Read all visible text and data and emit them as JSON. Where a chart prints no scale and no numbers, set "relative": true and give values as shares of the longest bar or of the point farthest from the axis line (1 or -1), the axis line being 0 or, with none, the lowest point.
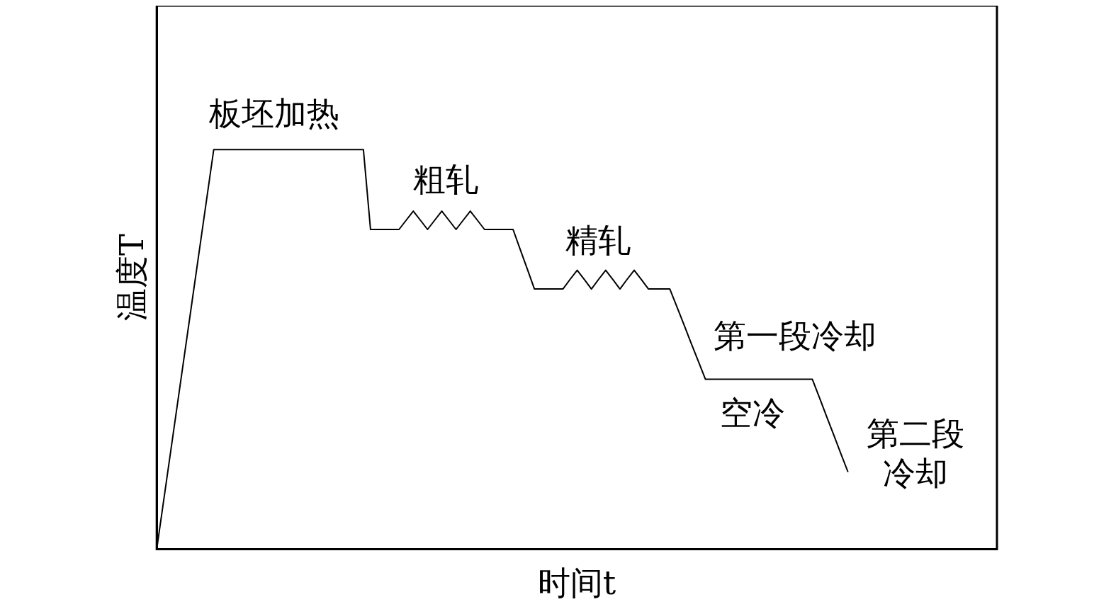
{
  "chart_data": {
    "type": "line",
    "relative": true,
    "xlabel": "时间t",
    "ylabel": "温度T",
    "marker": "none",
    "line_style": "solid",
    "categories": [
      null,
      null,
      null,
      null,
      null,
      null,
      null,
      null,
      null,
      null,
      null,
      null,
      null,
      null,
      null,
      null,
      null,
      null,
      null,
      null,
      null,
      null,
      null,
      null,
      null,
      null,
      null,
      null,
      null,
      null,
      null,
      null,
      null,
      null,
      null,
      null,
      null,
      null,
      null,
      null,
      null,
      null,
      null,
      null,
      null,
      null,
      null,
      null,
      null,
      null,
      null,
      null,
      null,
      null,
      null,
      null,
      null,
      null,
      null,
      null,
      null,
      null,
      null,
      null,
      null,
      null,
      null,
      null,
      null,
      null,
      null,
      null,
      null,
      null,
      null,
      null,
      null,
      null,
      null,
      null,
      null,
      null,
      null,
      null,
      null,
      null,
      null,
      null,
      null,
      null,
      null,
      null,
      null,
      null,
      null,
      null,
      null,
      null
    ],
    "series": [
      {
        "color": "#000000",
        "values": [
          0,
          0.125,
          0.25,
          0.375,
          0.5,
          0.625,
          0.75,
          0.875,
          1,
          1,
          1,
          1,
          1,
          1,
          1,
          1,
          1,
          1,
          1,
          1,
          1,
          1,
          1,
          1,
          1,
          1,
          1,
          1,
          1,
          1,
          0.8,
          0.8,
          0.8,
          0.8,
          0.8,
          0.823,
          0.846,
          0.823,
          0.8,
          0.823,
          0.846,
          0.823,
          0.8,
          0.823,
          0.846,
          0.823,
          0.8,
          0.8,
          0.8,
          0.8,
          0.8,
          0.75,
          0.701,
          0.651,
          0.651,
          0.651,
          0.651,
          0.651,
          0.675,
          0.698,
          0.675,
          0.651,
          0.675,
          0.698,
          0.675,
          0.651,
          0.675,
          0.698,
          0.675,
          0.651,
          0.651,
          0.651,
          0.651,
          0.606,
          0.561,
          0.515,
          0.47,
          0.425,
          0.425,
          0.425,
          0.425,
          0.425,
          0.425,
          0.425,
          0.425,
          0.425,
          0.425,
          0.425,
          0.425,
          0.425,
          0.425,
          0.425,
          0.425,
          0.379,
          0.332,
          0.286,
          0.239,
          0.193
        ]
      }
    ],
    "annotations": [
      "板坯加热",
      "粗轧",
      "精轧",
      "第一段冷却",
      "空冷",
      "第二段冷却"
    ]
  }
}
